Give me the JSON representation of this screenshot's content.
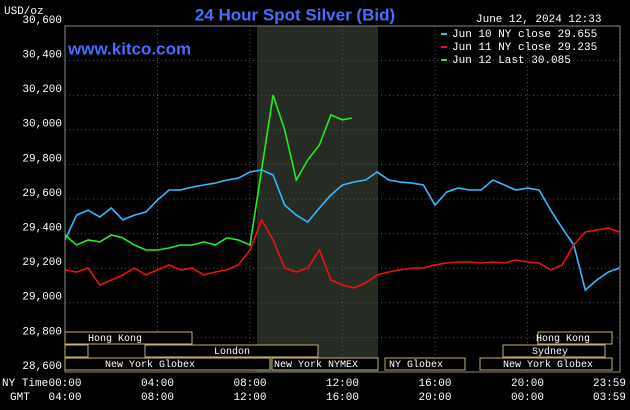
{
  "chart_data": {
    "type": "line",
    "title": "24 Hour Spot Silver (Bid)",
    "unit_label": "USD/oz",
    "timestamp": "June 12, 2024 12:33",
    "website": "www.kitco.com",
    "ylim": [
      28600,
      30600
    ],
    "yticks": [
      {
        "value": 28600,
        "label": "28,600"
      },
      {
        "value": 28800,
        "label": "28,800"
      },
      {
        "value": 29000,
        "label": "29,000"
      },
      {
        "value": 29200,
        "label": "29,200"
      },
      {
        "value": 29400,
        "label": "29,400"
      },
      {
        "value": 29600,
        "label": "29,600"
      },
      {
        "value": 29800,
        "label": "29,800"
      },
      {
        "value": 30000,
        "label": "30,000"
      },
      {
        "value": 30200,
        "label": "30,200"
      },
      {
        "value": 30400,
        "label": "30,400"
      },
      {
        "value": 30600,
        "label": "30,600"
      }
    ],
    "xlim": [
      0,
      24
    ],
    "xticks": [
      {
        "value": 0,
        "label": "00:00"
      },
      {
        "value": 4,
        "label": "04:00"
      },
      {
        "value": 8,
        "label": "08:00"
      },
      {
        "value": 12,
        "label": "12:00"
      },
      {
        "value": 16,
        "label": "16:00"
      },
      {
        "value": 20,
        "label": "20:00"
      },
      {
        "value": 23.98,
        "label": "23:59"
      }
    ],
    "x_axis_label": "NY Time",
    "second_axis_label": "GMT",
    "gmt_labels": [
      "04:00",
      "08:00",
      "12:00",
      "16:00",
      "20:00",
      "00:00",
      "03:59"
    ],
    "grid": true,
    "series": [
      {
        "name": "Jun 10 NY close 29.655",
        "color": "#33bbff",
        "x": [
          0,
          0.5,
          1,
          1.5,
          2,
          2.5,
          3,
          3.5,
          4,
          4.5,
          5,
          5.5,
          6,
          6.5,
          7,
          7.5,
          8,
          8.5,
          9,
          9.5,
          10,
          10.5,
          11,
          11.5,
          12,
          12.5,
          13,
          13.5,
          14,
          14.5,
          15,
          15.5,
          16,
          16.5,
          17,
          17.5,
          18,
          18.5,
          19,
          19.5,
          20,
          20.5,
          21,
          21.5,
          22,
          22.5,
          23,
          23.5,
          23.98
        ],
        "values": [
          29363,
          29507,
          29536,
          29496,
          29548,
          29479,
          29507,
          29525,
          29594,
          29652,
          29652,
          29669,
          29681,
          29692,
          29710,
          29721,
          29756,
          29768,
          29739,
          29565,
          29507,
          29467,
          29548,
          29623,
          29681,
          29698,
          29710,
          29756,
          29710,
          29698,
          29692,
          29681,
          29565,
          29640,
          29663,
          29652,
          29652,
          29710,
          29681,
          29652,
          29663,
          29652,
          29536,
          29432,
          29334,
          29074,
          29132,
          29178,
          29201
        ]
      },
      {
        "name": "Jun 11 NY close 29.235",
        "color": "#ee1111",
        "x": [
          0,
          0.5,
          1,
          1.5,
          2,
          2.5,
          3,
          3.5,
          4,
          4.5,
          5,
          5.5,
          6,
          6.5,
          7,
          7.5,
          8,
          8.5,
          9,
          9.5,
          10,
          10.5,
          11,
          11.5,
          12,
          12.5,
          13,
          13.5,
          14,
          14.5,
          15,
          15.5,
          16,
          16.5,
          17,
          17.5,
          18,
          18.5,
          19,
          19.5,
          20,
          20.5,
          21,
          21.5,
          22,
          22.5,
          23,
          23.5,
          23.98
        ],
        "values": [
          29190,
          29178,
          29201,
          29103,
          29132,
          29161,
          29201,
          29161,
          29190,
          29219,
          29190,
          29201,
          29161,
          29178,
          29190,
          29219,
          29305,
          29479,
          29363,
          29201,
          29178,
          29201,
          29305,
          29132,
          29103,
          29086,
          29115,
          29161,
          29178,
          29190,
          29201,
          29201,
          29219,
          29230,
          29236,
          29236,
          29230,
          29236,
          29230,
          29248,
          29236,
          29230,
          29190,
          29219,
          29334,
          29409,
          29421,
          29432,
          29409
        ]
      },
      {
        "name": "Jun 12 Last 30.085",
        "color": "#22ee22",
        "x": [
          0,
          0.5,
          1,
          1.5,
          2,
          2.5,
          3,
          3.5,
          4,
          4.5,
          5,
          5.5,
          6,
          6.5,
          7,
          7.5,
          8,
          8.5,
          9,
          9.5,
          10,
          10.5,
          11,
          11.5,
          12,
          12.4
        ],
        "values": [
          29392,
          29334,
          29363,
          29352,
          29392,
          29375,
          29334,
          29305,
          29305,
          29317,
          29334,
          29334,
          29352,
          29334,
          29375,
          29363,
          29334,
          29768,
          30201,
          29999,
          29710,
          29826,
          29912,
          30086,
          30057,
          30068
        ]
      }
    ],
    "sessions": [
      "Hong Kong",
      "",
      "London",
      "New York Globex",
      "New York NYMEX",
      "NY Globex",
      "Hong Kong",
      "Sydney",
      "New York Globex"
    ]
  }
}
